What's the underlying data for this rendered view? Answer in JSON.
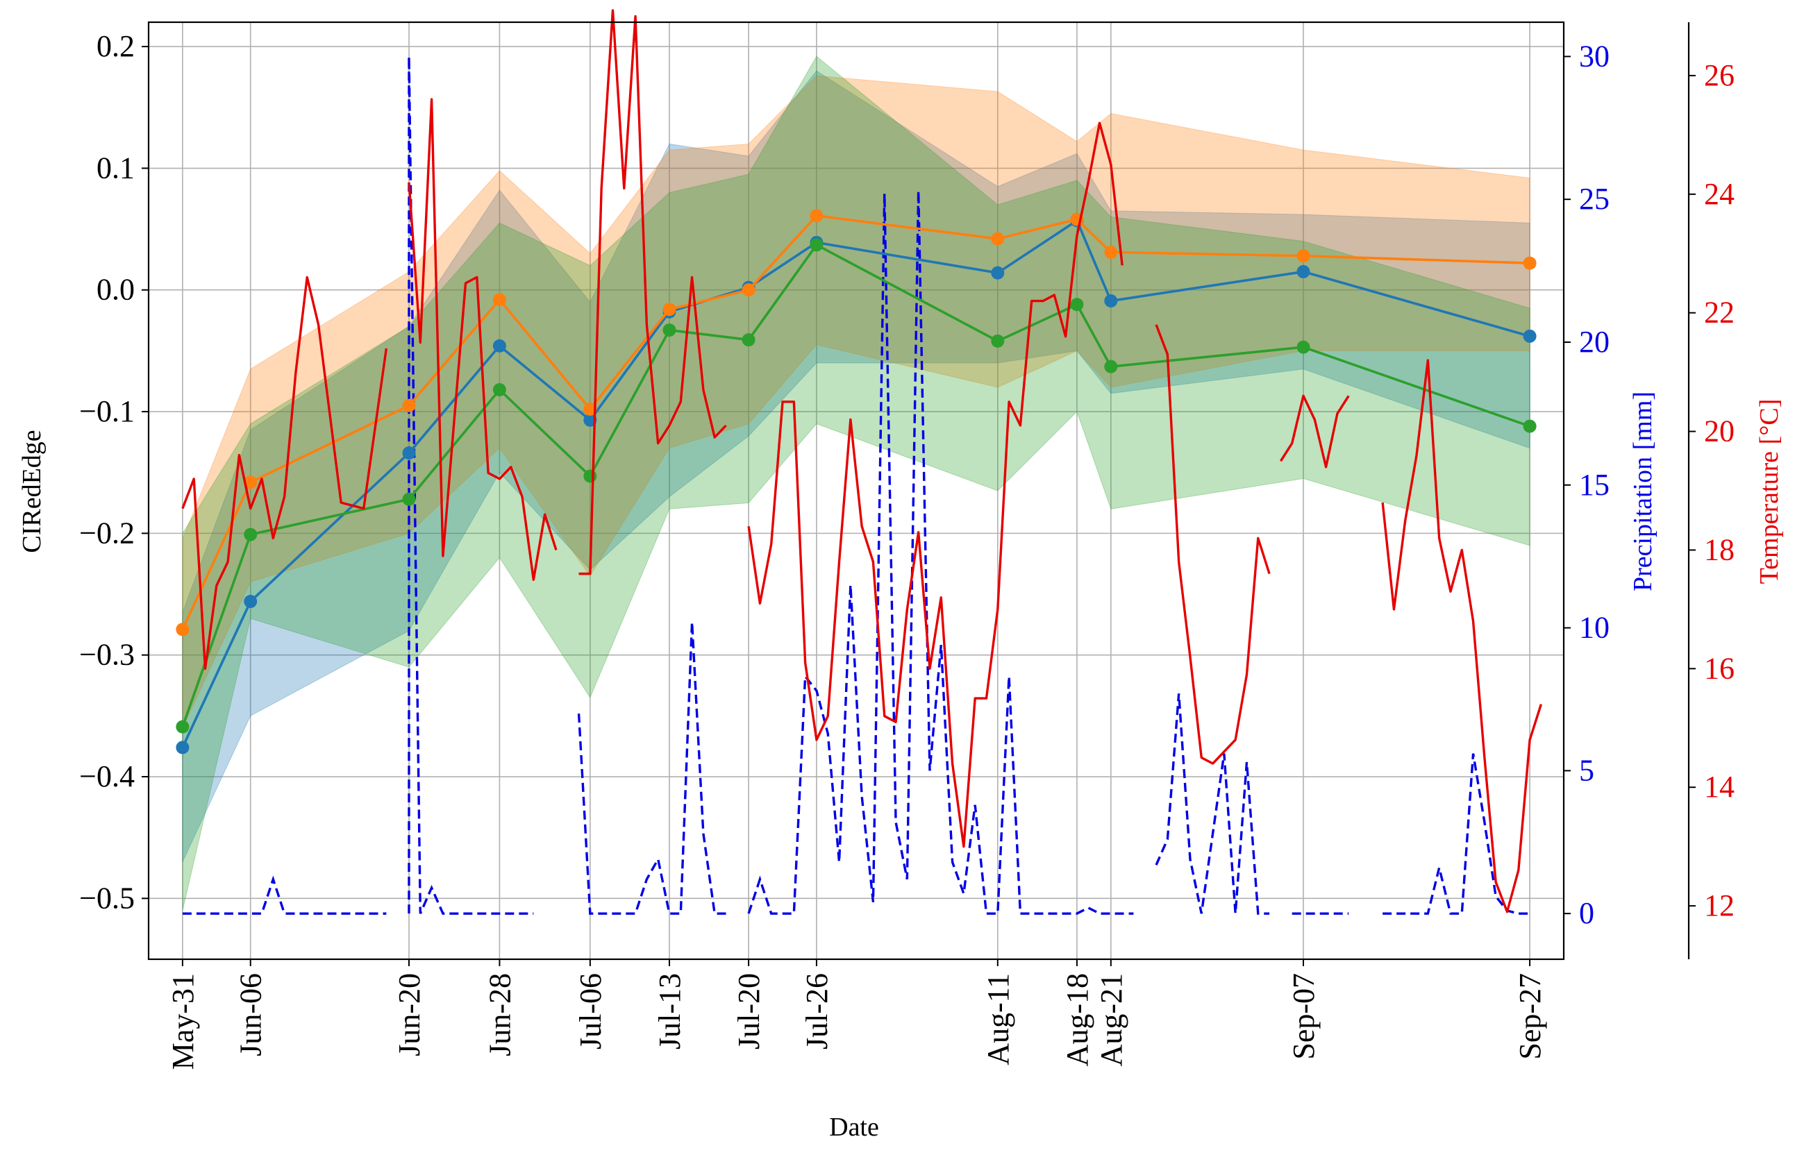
{
  "chart_data": {
    "type": "line",
    "xlabel": "Date",
    "ylabel": "CIRedEdge",
    "y2label": "Precipitation [mm]",
    "y3label": "Temperature [°C]",
    "ylim": [
      -0.55,
      0.22
    ],
    "y2lim": [
      -1.6,
      31.2
    ],
    "y3lim": [
      11.1,
      26.9
    ],
    "grid": true,
    "day_range": [
      -3,
      122
    ],
    "yticks": [
      0.2,
      0.1,
      0.0,
      -0.1,
      -0.2,
      -0.3,
      -0.4,
      -0.5
    ],
    "ytick_labels": [
      "0.2",
      "0.1",
      "0.0",
      "−0.1",
      "−0.2",
      "−0.3",
      "−0.4",
      "−0.5"
    ],
    "y2ticks": [
      0,
      5,
      10,
      15,
      20,
      25,
      30
    ],
    "y2tick_labels": [
      "0",
      "5",
      "10",
      "15",
      "20",
      "25",
      "30"
    ],
    "y3ticks": [
      12,
      14,
      16,
      18,
      20,
      22,
      24,
      26
    ],
    "y3tick_labels": [
      "12",
      "14",
      "16",
      "18",
      "20",
      "22",
      "24",
      "26"
    ],
    "obs_days": [
      0,
      6,
      20,
      28,
      36,
      43,
      50,
      56,
      72,
      79,
      82,
      99,
      119
    ],
    "obs_labels": [
      "May-31",
      "Jun-06",
      "Jun-20",
      "Jun-28",
      "Jul-06",
      "Jul-13",
      "Jul-20",
      "Jul-26",
      "Aug-11",
      "Aug-18",
      "Aug-21",
      "Sep-07",
      "Sep-27"
    ],
    "series": [
      {
        "name": "blue",
        "color": "#1f77b4",
        "values": [
          -0.376,
          -0.256,
          -0.134,
          -0.046,
          -0.107,
          -0.018,
          0.002,
          0.039,
          0.014,
          0.057,
          -0.009,
          0.015,
          -0.038
        ],
        "band_upper": [
          -0.265,
          -0.115,
          -0.03,
          0.082,
          -0.01,
          0.12,
          0.11,
          0.18,
          0.085,
          0.112,
          0.065,
          0.062,
          0.055
        ],
        "band_lower": [
          -0.47,
          -0.35,
          -0.28,
          -0.15,
          -0.23,
          -0.17,
          -0.12,
          -0.06,
          -0.06,
          -0.05,
          -0.085,
          -0.065,
          -0.13
        ]
      },
      {
        "name": "orange",
        "color": "#ff7f0e",
        "values": [
          -0.279,
          -0.158,
          -0.095,
          -0.008,
          -0.098,
          -0.016,
          0.0,
          0.061,
          0.042,
          0.058,
          0.031,
          0.028,
          0.022
        ],
        "band_upper": [
          -0.205,
          -0.065,
          0.015,
          0.098,
          0.03,
          0.115,
          0.12,
          0.176,
          0.163,
          0.122,
          0.145,
          0.115,
          0.092
        ],
        "band_lower": [
          -0.36,
          -0.24,
          -0.2,
          -0.13,
          -0.235,
          -0.13,
          -0.11,
          -0.045,
          -0.08,
          -0.05,
          -0.08,
          -0.05,
          -0.05
        ]
      },
      {
        "name": "green",
        "color": "#2ca02c",
        "values": [
          -0.359,
          -0.201,
          -0.172,
          -0.082,
          -0.153,
          -0.033,
          -0.041,
          0.037,
          -0.042,
          -0.012,
          -0.063,
          -0.047,
          -0.112
        ],
        "band_upper": [
          -0.2,
          -0.11,
          -0.03,
          0.055,
          0.02,
          0.08,
          0.095,
          0.192,
          0.07,
          0.09,
          0.06,
          0.04,
          -0.015
        ],
        "band_lower": [
          -0.51,
          -0.27,
          -0.31,
          -0.22,
          -0.335,
          -0.18,
          -0.175,
          -0.11,
          -0.165,
          -0.1,
          -0.18,
          -0.155,
          -0.21
        ]
      }
    ],
    "precipitation": {
      "name": "Precipitation",
      "color": "#0000e6",
      "segments": [
        [
          [
            0,
            0
          ],
          [
            7,
            0
          ],
          [
            8,
            1.2
          ],
          [
            9,
            0
          ],
          [
            18,
            0
          ]
        ],
        [
          [
            20,
            0
          ],
          [
            20,
            30
          ],
          [
            21,
            0
          ],
          [
            22,
            0.9
          ],
          [
            23,
            0
          ],
          [
            31,
            0
          ]
        ],
        [
          [
            35,
            7
          ],
          [
            36,
            0
          ],
          [
            40,
            0
          ],
          [
            41,
            1.2
          ],
          [
            42,
            1.9
          ],
          [
            43,
            0
          ],
          [
            44,
            0
          ],
          [
            45,
            10.2
          ],
          [
            46,
            2.8
          ],
          [
            47,
            0
          ],
          [
            48,
            0
          ]
        ],
        [
          [
            50,
            0
          ],
          [
            51,
            1.2
          ],
          [
            52,
            0
          ],
          [
            54,
            0
          ],
          [
            55,
            8.3
          ],
          [
            56,
            7.8
          ],
          [
            57,
            6.3
          ],
          [
            58,
            1.8
          ],
          [
            59,
            11.5
          ],
          [
            60,
            4.1
          ],
          [
            61,
            0.4
          ],
          [
            62,
            25.2
          ],
          [
            63,
            3.2
          ],
          [
            64,
            1.2
          ],
          [
            65,
            25.3
          ],
          [
            66,
            5
          ],
          [
            67,
            9.4
          ],
          [
            68,
            1.8
          ],
          [
            69,
            0.7
          ],
          [
            70,
            3.8
          ],
          [
            71,
            0
          ],
          [
            72,
            0
          ],
          [
            73,
            8.3
          ],
          [
            74,
            0
          ],
          [
            79,
            0
          ],
          [
            80,
            0.2
          ],
          [
            81,
            0
          ],
          [
            84,
            0
          ]
        ],
        [
          [
            86,
            1.7
          ],
          [
            87,
            2.6
          ],
          [
            88,
            7.7
          ],
          [
            89,
            1.9
          ],
          [
            90,
            0
          ],
          [
            92,
            5.6
          ],
          [
            93,
            0
          ],
          [
            94,
            5.3
          ],
          [
            95,
            0
          ],
          [
            96,
            0
          ]
        ],
        [
          [
            98,
            0
          ],
          [
            103,
            0
          ]
        ],
        [
          [
            106,
            0
          ],
          [
            110,
            0
          ],
          [
            111,
            1.6
          ],
          [
            112,
            0
          ],
          [
            113,
            0
          ],
          [
            114,
            5.6
          ],
          [
            115,
            3.2
          ],
          [
            116,
            0.6
          ],
          [
            117,
            0.1
          ],
          [
            118,
            0
          ],
          [
            119,
            0
          ]
        ]
      ]
    },
    "temperature": {
      "name": "Temperature",
      "color": "#e60000",
      "segments": [
        [
          [
            0,
            18.7
          ],
          [
            1,
            19.2
          ],
          [
            2,
            16
          ],
          [
            3,
            17.4
          ],
          [
            4,
            17.8
          ],
          [
            5,
            19.6
          ],
          [
            6,
            18.7
          ],
          [
            7,
            19.2
          ],
          [
            8,
            18.2
          ],
          [
            9,
            18.9
          ],
          [
            10,
            21
          ],
          [
            11,
            22.6
          ],
          [
            12,
            21.8
          ],
          [
            14,
            18.8
          ],
          [
            16,
            18.7
          ],
          [
            18,
            21.4
          ]
        ],
        [
          [
            20,
            24.2
          ],
          [
            21,
            21.5
          ],
          [
            22,
            25.6
          ],
          [
            23,
            17.9
          ],
          [
            25,
            22.5
          ],
          [
            26,
            22.6
          ],
          [
            27,
            19.3
          ],
          [
            28,
            19.2
          ],
          [
            29,
            19.4
          ],
          [
            30,
            18.9
          ],
          [
            31,
            17.5
          ],
          [
            32,
            18.6
          ],
          [
            33,
            18
          ]
        ],
        [
          [
            35,
            17.6
          ],
          [
            36,
            17.6
          ],
          [
            37,
            24.1
          ],
          [
            38,
            27.1
          ],
          [
            39,
            24.1
          ],
          [
            40,
            27
          ],
          [
            41,
            21.8
          ],
          [
            42,
            19.8
          ],
          [
            43,
            20.1
          ],
          [
            44,
            20.5
          ],
          [
            45,
            22.6
          ],
          [
            46,
            20.7
          ],
          [
            47,
            19.9
          ],
          [
            48,
            20.1
          ]
        ],
        [
          [
            50,
            18.4
          ],
          [
            51,
            17.1
          ],
          [
            52,
            18.1
          ],
          [
            53,
            20.5
          ],
          [
            54,
            20.5
          ],
          [
            55,
            16.1
          ],
          [
            56,
            14.8
          ],
          [
            57,
            15.2
          ],
          [
            58,
            17.8
          ],
          [
            59,
            20.2
          ],
          [
            60,
            18.4
          ],
          [
            61,
            17.8
          ],
          [
            62,
            15.2
          ],
          [
            63,
            15.1
          ],
          [
            64,
            17
          ],
          [
            65,
            18.3
          ],
          [
            66,
            16
          ],
          [
            67,
            17.2
          ],
          [
            68,
            14.4
          ],
          [
            69,
            13
          ],
          [
            70,
            15.5
          ],
          [
            71,
            15.5
          ],
          [
            72,
            17
          ],
          [
            73,
            20.5
          ],
          [
            74,
            20.1
          ],
          [
            75,
            22.2
          ],
          [
            76,
            22.2
          ],
          [
            77,
            22.3
          ],
          [
            78,
            21.6
          ],
          [
            79,
            23.3
          ],
          [
            80,
            24.2
          ],
          [
            81,
            25.2
          ],
          [
            82,
            24.5
          ],
          [
            83,
            22.8
          ]
        ],
        [
          [
            86,
            21.8
          ],
          [
            87,
            21.3
          ],
          [
            88,
            17.8
          ],
          [
            89,
            16.2
          ],
          [
            90,
            14.5
          ],
          [
            91,
            14.4
          ],
          [
            93,
            14.8
          ],
          [
            94,
            15.9
          ],
          [
            95,
            18.2
          ],
          [
            96,
            17.6
          ]
        ],
        [
          [
            97,
            19.5
          ],
          [
            98,
            19.8
          ],
          [
            99,
            20.6
          ],
          [
            100,
            20.2
          ],
          [
            101,
            19.4
          ],
          [
            102,
            20.3
          ],
          [
            103,
            20.6
          ]
        ],
        [
          [
            106,
            18.8
          ],
          [
            107,
            17
          ],
          [
            108,
            18.5
          ],
          [
            109,
            19.6
          ],
          [
            110,
            21.2
          ],
          [
            111,
            18.2
          ],
          [
            112,
            17.3
          ],
          [
            113,
            18
          ],
          [
            114,
            16.8
          ],
          [
            115,
            14.5
          ],
          [
            116,
            12.4
          ],
          [
            117,
            11.9
          ],
          [
            118,
            12.6
          ],
          [
            119,
            14.8
          ],
          [
            120,
            15.4
          ]
        ]
      ]
    }
  }
}
